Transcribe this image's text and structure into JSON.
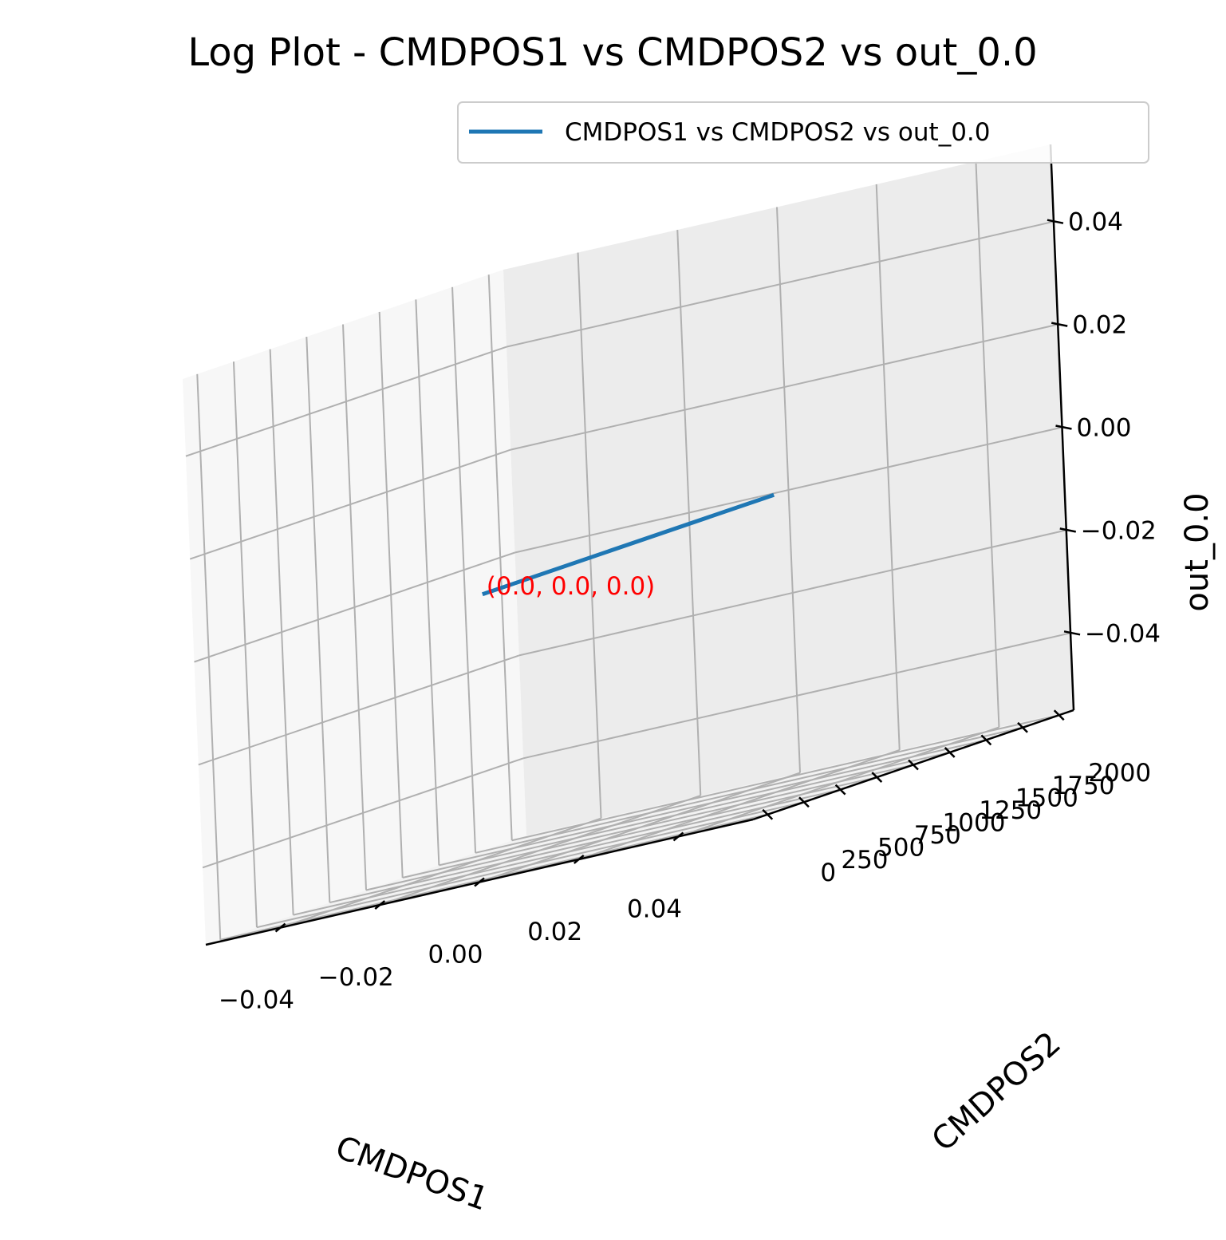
{
  "chart_data": {
    "type": "line3d",
    "title": "Log Plot - CMDPOS1 vs CMDPOS2 vs out_0.0",
    "xlabel": "CMDPOS1",
    "ylabel": "CMDPOS2",
    "zlabel": "out_0.0",
    "xlim": [
      -0.055,
      0.055
    ],
    "ylim": [
      -100,
      2100
    ],
    "zlim": [
      -0.055,
      0.055
    ],
    "x_ticks": [
      "−0.04",
      "−0.02",
      "0.00",
      "0.02",
      "0.04"
    ],
    "y_ticks": [
      "0",
      "250",
      "500",
      "750",
      "1000",
      "1250",
      "1500",
      "1750",
      "2000"
    ],
    "z_ticks": [
      "−0.04",
      "−0.02",
      "0.00",
      "0.02",
      "0.04"
    ],
    "grid": true,
    "legend_position": "top-right",
    "series": [
      {
        "name": "CMDPOS1 vs CMDPOS2 vs out_0.0",
        "color": "#1f77b4",
        "x": [
          0.0,
          0.0
        ],
        "y": [
          0,
          2000
        ],
        "z": [
          0.0,
          0.0
        ]
      }
    ],
    "annotations": [
      {
        "text": "(0.0, 0.0, 0.0)",
        "x": 0.0,
        "y": 0.0,
        "z": 0.0,
        "color": "#ff0000"
      }
    ]
  }
}
